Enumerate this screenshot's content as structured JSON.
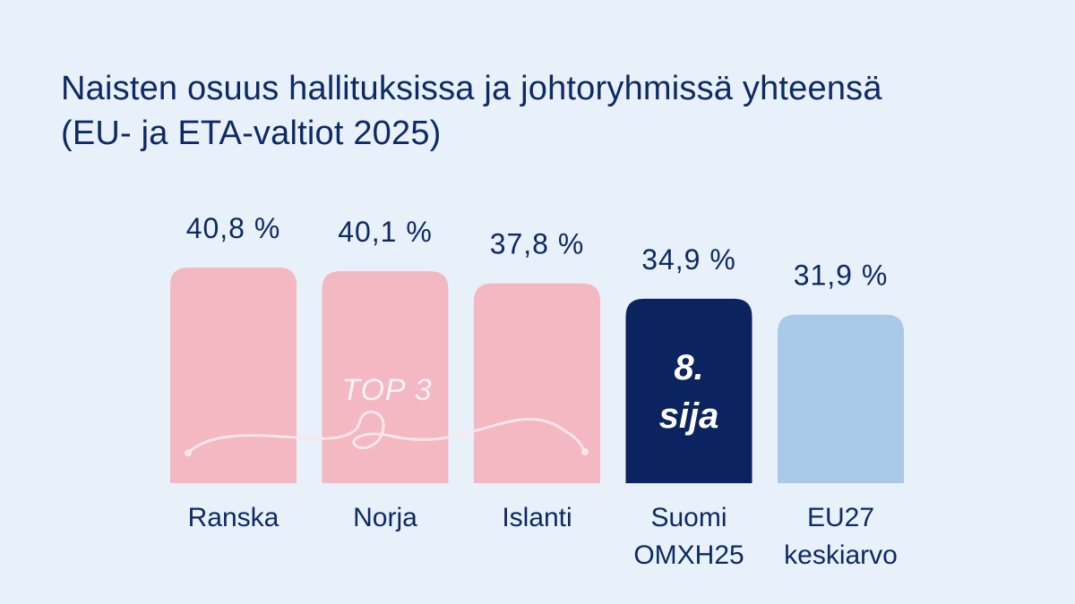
{
  "chart_data": {
    "type": "bar",
    "title": "Naisten osuus hallituksissa ja johtoryhmissä yhteensä",
    "subtitle": "(EU- ja ETA-valtiot 2025)",
    "categories": [
      [
        "Ranska"
      ],
      [
        "Norja"
      ],
      [
        "Islanti"
      ],
      [
        "Suomi",
        "OMXH25"
      ],
      [
        "EU27",
        "keskiarvo"
      ]
    ],
    "values": [
      40.8,
      40.1,
      37.8,
      34.9,
      31.9
    ],
    "value_labels": [
      "40,8 %",
      "40,1 %",
      "37,8 %",
      "34,9 %",
      "31,9 %"
    ],
    "bar_colors": [
      "#f3b8c1",
      "#f3b8c1",
      "#f3b8c1",
      "#0b2460",
      "#a8c9e8"
    ],
    "annotations": {
      "top3": "TOP 3",
      "rank_line1": "8.",
      "rank_line2": "sija"
    },
    "colors": {
      "background": "#e8f0fa",
      "text": "#0d2a66",
      "ribbon": "#fbe6ea"
    }
  }
}
